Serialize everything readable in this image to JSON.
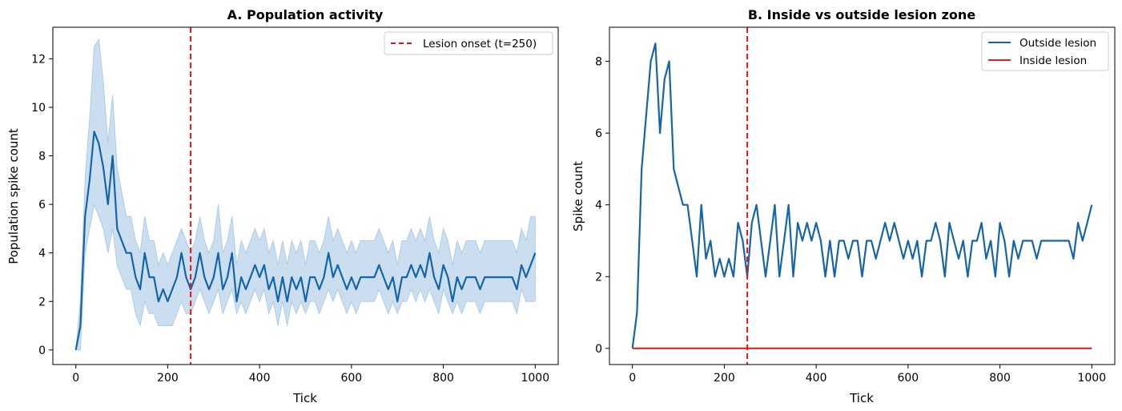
{
  "chart_data": [
    {
      "type": "line",
      "title": "A. Population activity",
      "xlabel": "Tick",
      "ylabel": "Population spike count",
      "xlim": [
        -50,
        1050
      ],
      "ylim": [
        -0.6,
        13.3
      ],
      "xticks": [
        0,
        200,
        400,
        600,
        800,
        1000
      ],
      "yticks": [
        0,
        2,
        4,
        6,
        8,
        10,
        12
      ],
      "grid": false,
      "legend": "top-right",
      "vline": {
        "x": 250,
        "label": "Lesion onset (t=250)",
        "color": "#ee1111",
        "style": "dashed"
      },
      "series": [
        {
          "color": "#1565a8",
          "band_color": "#aecde6",
          "x": [
            0,
            10,
            20,
            30,
            40,
            50,
            60,
            70,
            80,
            90,
            100,
            110,
            120,
            130,
            140,
            150,
            160,
            170,
            180,
            190,
            200,
            210,
            220,
            230,
            240,
            250,
            260,
            270,
            280,
            290,
            300,
            310,
            320,
            330,
            340,
            350,
            360,
            370,
            380,
            390,
            400,
            410,
            420,
            430,
            440,
            450,
            460,
            470,
            480,
            490,
            500,
            510,
            520,
            530,
            540,
            550,
            560,
            570,
            580,
            590,
            600,
            610,
            620,
            630,
            640,
            650,
            660,
            670,
            680,
            690,
            700,
            710,
            720,
            730,
            740,
            750,
            760,
            770,
            780,
            790,
            800,
            810,
            820,
            830,
            840,
            850,
            860,
            870,
            880,
            890,
            900,
            910,
            920,
            930,
            940,
            950,
            960,
            970,
            980,
            990,
            1000
          ],
          "y": [
            0,
            1,
            5.5,
            7,
            9,
            8.5,
            7.5,
            6,
            8,
            5,
            4.5,
            4,
            4,
            3,
            2.5,
            4,
            3,
            3,
            2,
            2.5,
            2,
            2.5,
            3,
            4,
            3,
            2.5,
            3,
            4,
            3,
            2.5,
            3,
            4,
            2.5,
            3,
            4,
            2,
            3,
            2.5,
            3,
            3.5,
            3,
            3.5,
            2.5,
            3,
            2,
            3,
            2,
            3,
            2.5,
            3,
            2,
            3,
            3,
            2.5,
            3,
            4,
            3,
            3.5,
            3,
            2.5,
            3,
            2.5,
            3,
            3,
            3,
            3,
            3.5,
            3,
            2.5,
            3,
            2,
            3,
            3,
            3.5,
            3,
            3.5,
            3,
            4,
            3,
            2.5,
            3.5,
            3,
            2,
            3,
            2.5,
            3,
            3,
            3,
            2.5,
            3,
            3,
            3,
            3,
            3,
            3,
            3,
            2.5,
            3.5,
            3,
            3.5,
            4
          ],
          "lower": [
            0,
            0,
            4,
            5,
            6,
            5.5,
            5,
            4,
            5,
            3.5,
            3,
            2.5,
            2.5,
            1.5,
            1,
            2,
            1.5,
            1.5,
            1,
            1,
            1,
            1,
            1.5,
            2,
            1.5,
            1.5,
            2,
            2.5,
            2,
            1.5,
            2,
            2.5,
            1.5,
            2,
            2.5,
            1.5,
            2,
            1.5,
            2,
            2.5,
            2,
            2.5,
            1.5,
            2,
            1,
            2,
            1,
            2,
            1.5,
            2,
            1.5,
            2,
            2,
            1.5,
            2,
            2.5,
            2,
            2.5,
            2,
            1.5,
            2,
            1.5,
            2,
            2,
            2,
            2,
            2.5,
            2,
            1.5,
            2,
            1.5,
            2,
            2,
            2.5,
            2,
            2.5,
            2,
            2.5,
            2,
            1.5,
            2.5,
            2,
            1.5,
            2,
            1.5,
            2,
            2,
            2,
            1.5,
            2,
            2,
            2,
            2,
            2,
            2,
            2,
            1.5,
            2.5,
            2,
            2,
            2
          ],
          "upper": [
            0,
            2,
            7,
            9.5,
            12.5,
            12.8,
            11,
            8.5,
            10.5,
            7.5,
            6.5,
            5.5,
            5.5,
            4.5,
            4,
            5.5,
            4.5,
            4.5,
            3.5,
            4,
            3.5,
            4,
            4.5,
            5,
            4.5,
            4,
            4.5,
            5.5,
            4.5,
            4,
            4.5,
            6,
            4,
            4.5,
            5.5,
            3.5,
            4.5,
            4,
            4.5,
            5,
            4.5,
            5,
            4,
            4.5,
            3.5,
            4.5,
            3.5,
            4.5,
            4,
            4.5,
            3.5,
            4.5,
            4.5,
            4,
            4.5,
            5.5,
            4.5,
            5,
            4.5,
            4,
            4.5,
            4,
            4.5,
            4.5,
            4.5,
            4.5,
            5,
            4.5,
            4,
            4.5,
            3.5,
            4.5,
            4.5,
            5,
            4.5,
            5,
            4.5,
            5.5,
            4.5,
            4,
            5,
            4.5,
            3.5,
            4.5,
            4,
            4.5,
            4.5,
            4.5,
            4,
            4.5,
            4.5,
            4.5,
            4.5,
            4.5,
            4.5,
            4.5,
            4,
            5,
            4.5,
            5.5,
            5.5
          ]
        }
      ]
    },
    {
      "type": "line",
      "title": "B. Inside vs outside lesion zone",
      "xlabel": "Tick",
      "ylabel": "Spike count",
      "xlim": [
        -50,
        1050
      ],
      "ylim": [
        -0.45,
        8.95
      ],
      "xticks": [
        0,
        200,
        400,
        600,
        800,
        1000
      ],
      "yticks": [
        0,
        2,
        4,
        6,
        8
      ],
      "grid": false,
      "legend": "top-right",
      "vline": {
        "x": 250,
        "color": "#ee1111",
        "style": "dashed"
      },
      "series": [
        {
          "name": "Outside lesion",
          "color": "#1565a8",
          "x": [
            0,
            10,
            20,
            30,
            40,
            50,
            60,
            70,
            80,
            90,
            100,
            110,
            120,
            130,
            140,
            150,
            160,
            170,
            180,
            190,
            200,
            210,
            220,
            230,
            240,
            250,
            260,
            270,
            280,
            290,
            300,
            310,
            320,
            330,
            340,
            350,
            360,
            370,
            380,
            390,
            400,
            410,
            420,
            430,
            440,
            450,
            460,
            470,
            480,
            490,
            500,
            510,
            520,
            530,
            540,
            550,
            560,
            570,
            580,
            590,
            600,
            610,
            620,
            630,
            640,
            650,
            660,
            670,
            680,
            690,
            700,
            710,
            720,
            730,
            740,
            750,
            760,
            770,
            780,
            790,
            800,
            810,
            820,
            830,
            840,
            850,
            860,
            870,
            880,
            890,
            900,
            910,
            920,
            930,
            940,
            950,
            960,
            970,
            980,
            990,
            1000
          ],
          "y": [
            0,
            1,
            5,
            6.5,
            8,
            8.5,
            6,
            7.5,
            8,
            5,
            4.5,
            4,
            4,
            3,
            2,
            4,
            2.5,
            3,
            2,
            2.5,
            2,
            2.5,
            2,
            3.5,
            3,
            2,
            3.5,
            4,
            3,
            2,
            3,
            4,
            2,
            3,
            4,
            2,
            3.5,
            3,
            3.5,
            3,
            3.5,
            3,
            2,
            3,
            2,
            3,
            3,
            2.5,
            3,
            3,
            2,
            3,
            3,
            2.5,
            3,
            3.5,
            3,
            3.5,
            3,
            2.5,
            3,
            2.5,
            3,
            2,
            3,
            3,
            3.5,
            3,
            2,
            3.5,
            3,
            2.5,
            3,
            2,
            3,
            3,
            3.5,
            2.5,
            3,
            2,
            3.5,
            3,
            2,
            3,
            2.5,
            3,
            3,
            3,
            2.5,
            3,
            3,
            3,
            3,
            3,
            3,
            3,
            2.5,
            3.5,
            3,
            3.5,
            4
          ]
        },
        {
          "name": "Inside lesion",
          "color": "#d62728",
          "x": [
            0,
            1000
          ],
          "y": [
            0,
            0
          ]
        }
      ]
    }
  ]
}
